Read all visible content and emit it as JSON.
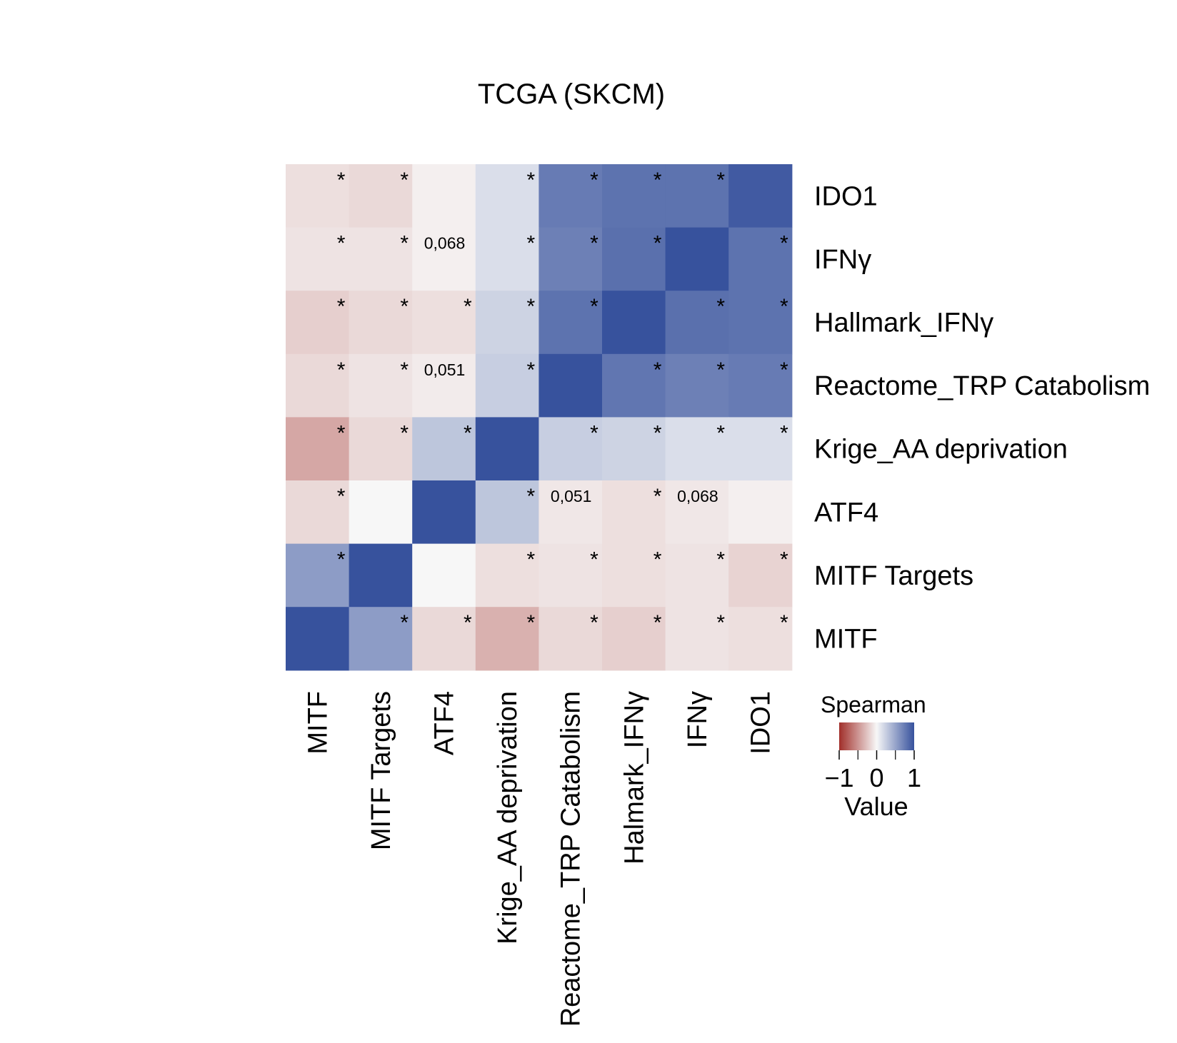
{
  "chart_data": {
    "type": "heatmap",
    "title": "TCGA (SKCM)",
    "rows": [
      "IDO1",
      "IFNγ",
      "Hallmark_IFNγ",
      "Reactome_TRP Catabolism",
      "Krige_AA deprivation",
      "ATF4",
      "MITF Targets",
      "MITF"
    ],
    "columns": [
      "MITF",
      "MITF Targets",
      "ATF4",
      "Krige_AA deprivation",
      "Reactome_TRP Catabolism",
      "Halmark_IFNγ",
      "IFNγ",
      "IDO1"
    ],
    "values": [
      [
        -0.12,
        -0.15,
        -0.04,
        0.15,
        0.75,
        0.8,
        0.8,
        0.95
      ],
      [
        -0.1,
        -0.1,
        -0.04,
        0.15,
        0.72,
        0.82,
        1.0,
        0.8
      ],
      [
        -0.2,
        -0.15,
        -0.12,
        0.22,
        0.8,
        1.0,
        0.82,
        0.8
      ],
      [
        -0.15,
        -0.1,
        -0.06,
        0.25,
        1.0,
        0.78,
        0.72,
        0.75
      ],
      [
        -0.4,
        -0.15,
        0.3,
        1.0,
        0.25,
        0.22,
        0.15,
        0.15
      ],
      [
        -0.15,
        0.0,
        1.0,
        0.3,
        -0.08,
        -0.12,
        -0.08,
        -0.04
      ],
      [
        0.55,
        1.0,
        0.0,
        -0.12,
        -0.1,
        -0.12,
        -0.1,
        -0.18
      ],
      [
        1.0,
        0.55,
        -0.15,
        -0.35,
        -0.15,
        -0.2,
        -0.1,
        -0.12
      ]
    ],
    "annotations": [
      [
        "*",
        "*",
        "",
        "*",
        "*",
        "*",
        "*",
        ""
      ],
      [
        "*",
        "*",
        "0,068",
        "*",
        "*",
        "*",
        "",
        "*"
      ],
      [
        "*",
        "*",
        "*",
        "*",
        "*",
        "",
        "*",
        "*"
      ],
      [
        "*",
        "*",
        "0,051",
        "*",
        "",
        "*",
        "*",
        "*"
      ],
      [
        "*",
        "*",
        "*",
        "",
        "*",
        "*",
        "*",
        "*"
      ],
      [
        "*",
        "",
        "",
        "*",
        "0,051",
        "*",
        "0,068",
        ""
      ],
      [
        "*",
        "",
        "",
        "*",
        "*",
        "*",
        "*",
        "*"
      ],
      [
        "",
        "*",
        "*",
        "*",
        "*",
        "*",
        "*",
        "*"
      ]
    ],
    "legend": {
      "title": "Spearman",
      "ticks": [
        "−1",
        "0",
        "1"
      ],
      "tick_values": [
        -1,
        0,
        1
      ],
      "label": "Value",
      "colors": {
        "low": "#a12f2a",
        "mid": "#f7f7f7",
        "high": "#37529d"
      },
      "range": [
        -1,
        1
      ]
    }
  }
}
